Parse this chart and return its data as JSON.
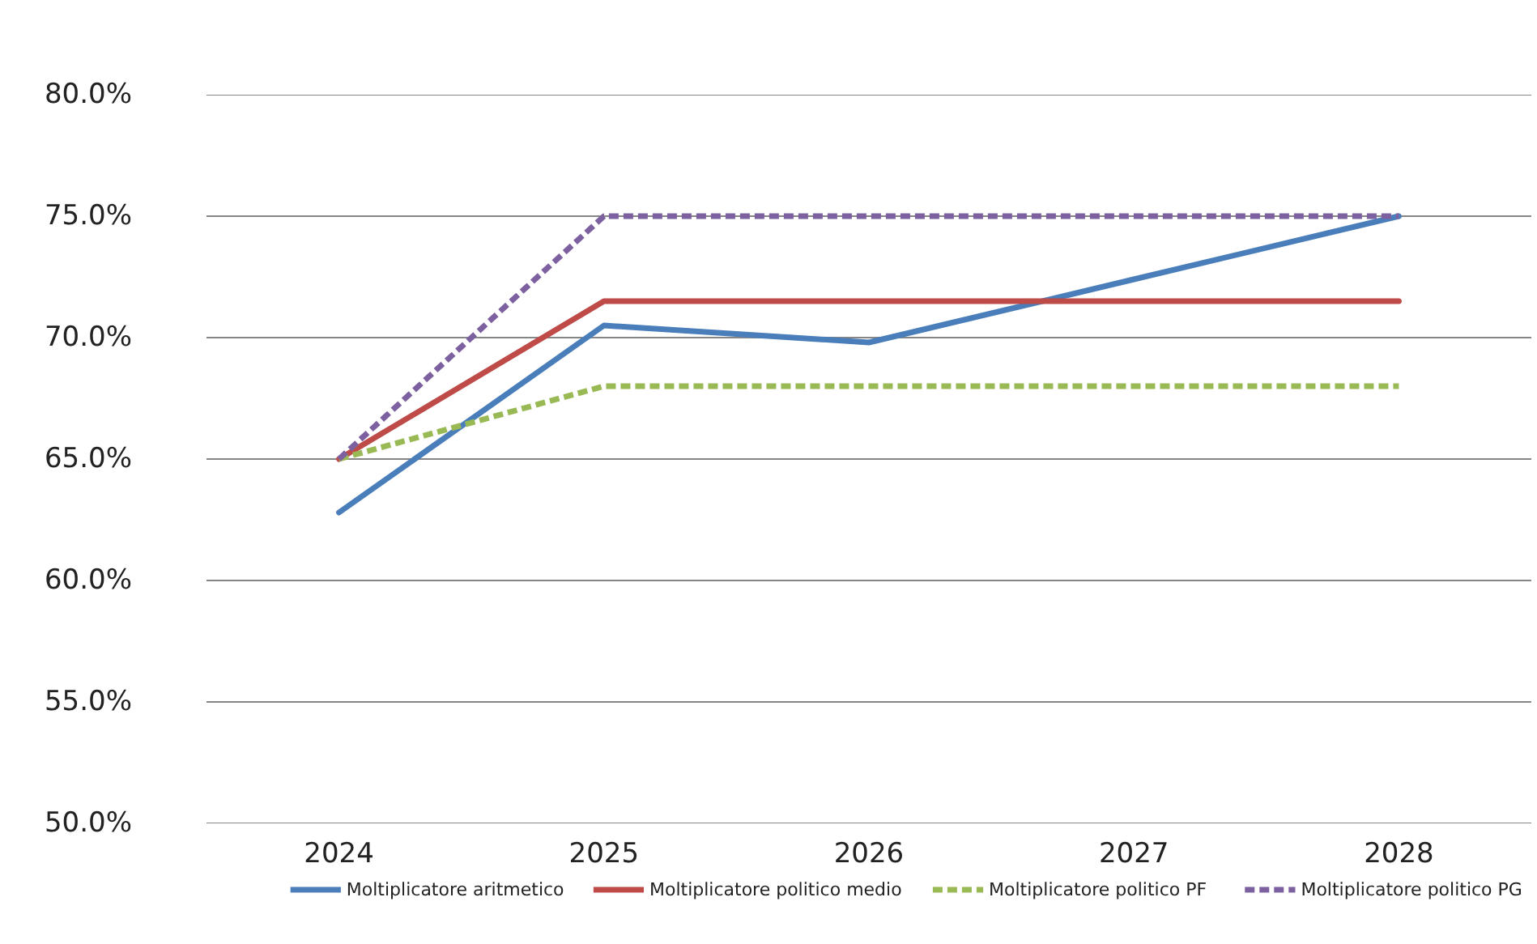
{
  "chart_data": {
    "type": "line",
    "categories": [
      "2024",
      "2025",
      "2026",
      "2027",
      "2028"
    ],
    "series": [
      {
        "name": "Moltiplicatore aritmetico",
        "color": "#4a7ebb",
        "line_style": "solid",
        "values": [
          62.8,
          70.5,
          69.8,
          72.4,
          75.0
        ]
      },
      {
        "name": "Moltiplicatore politico medio",
        "color": "#be4b48",
        "line_style": "solid",
        "values": [
          65.0,
          71.5,
          71.5,
          71.5,
          71.5
        ]
      },
      {
        "name": "Moltiplicatore politico PF",
        "color": "#98b954",
        "line_style": "dashed",
        "values": [
          65.0,
          68.0,
          68.0,
          68.0,
          68.0
        ]
      },
      {
        "name": "Moltiplicatore politico PG",
        "color": "#7d60a0",
        "line_style": "dashed",
        "values": [
          65.0,
          75.0,
          75.0,
          75.0,
          75.0
        ]
      }
    ],
    "ylim": [
      50,
      80
    ],
    "yticks": [
      {
        "value": 50,
        "label": "50.0%"
      },
      {
        "value": 55,
        "label": "55.0%"
      },
      {
        "value": 60,
        "label": "60.0%"
      },
      {
        "value": 65,
        "label": "65.0%"
      },
      {
        "value": 70,
        "label": "70.0%"
      },
      {
        "value": 75,
        "label": "75.0%"
      },
      {
        "value": 80,
        "label": "80.0%"
      }
    ],
    "grid": "y",
    "legend": "bottom",
    "marker": "none"
  }
}
